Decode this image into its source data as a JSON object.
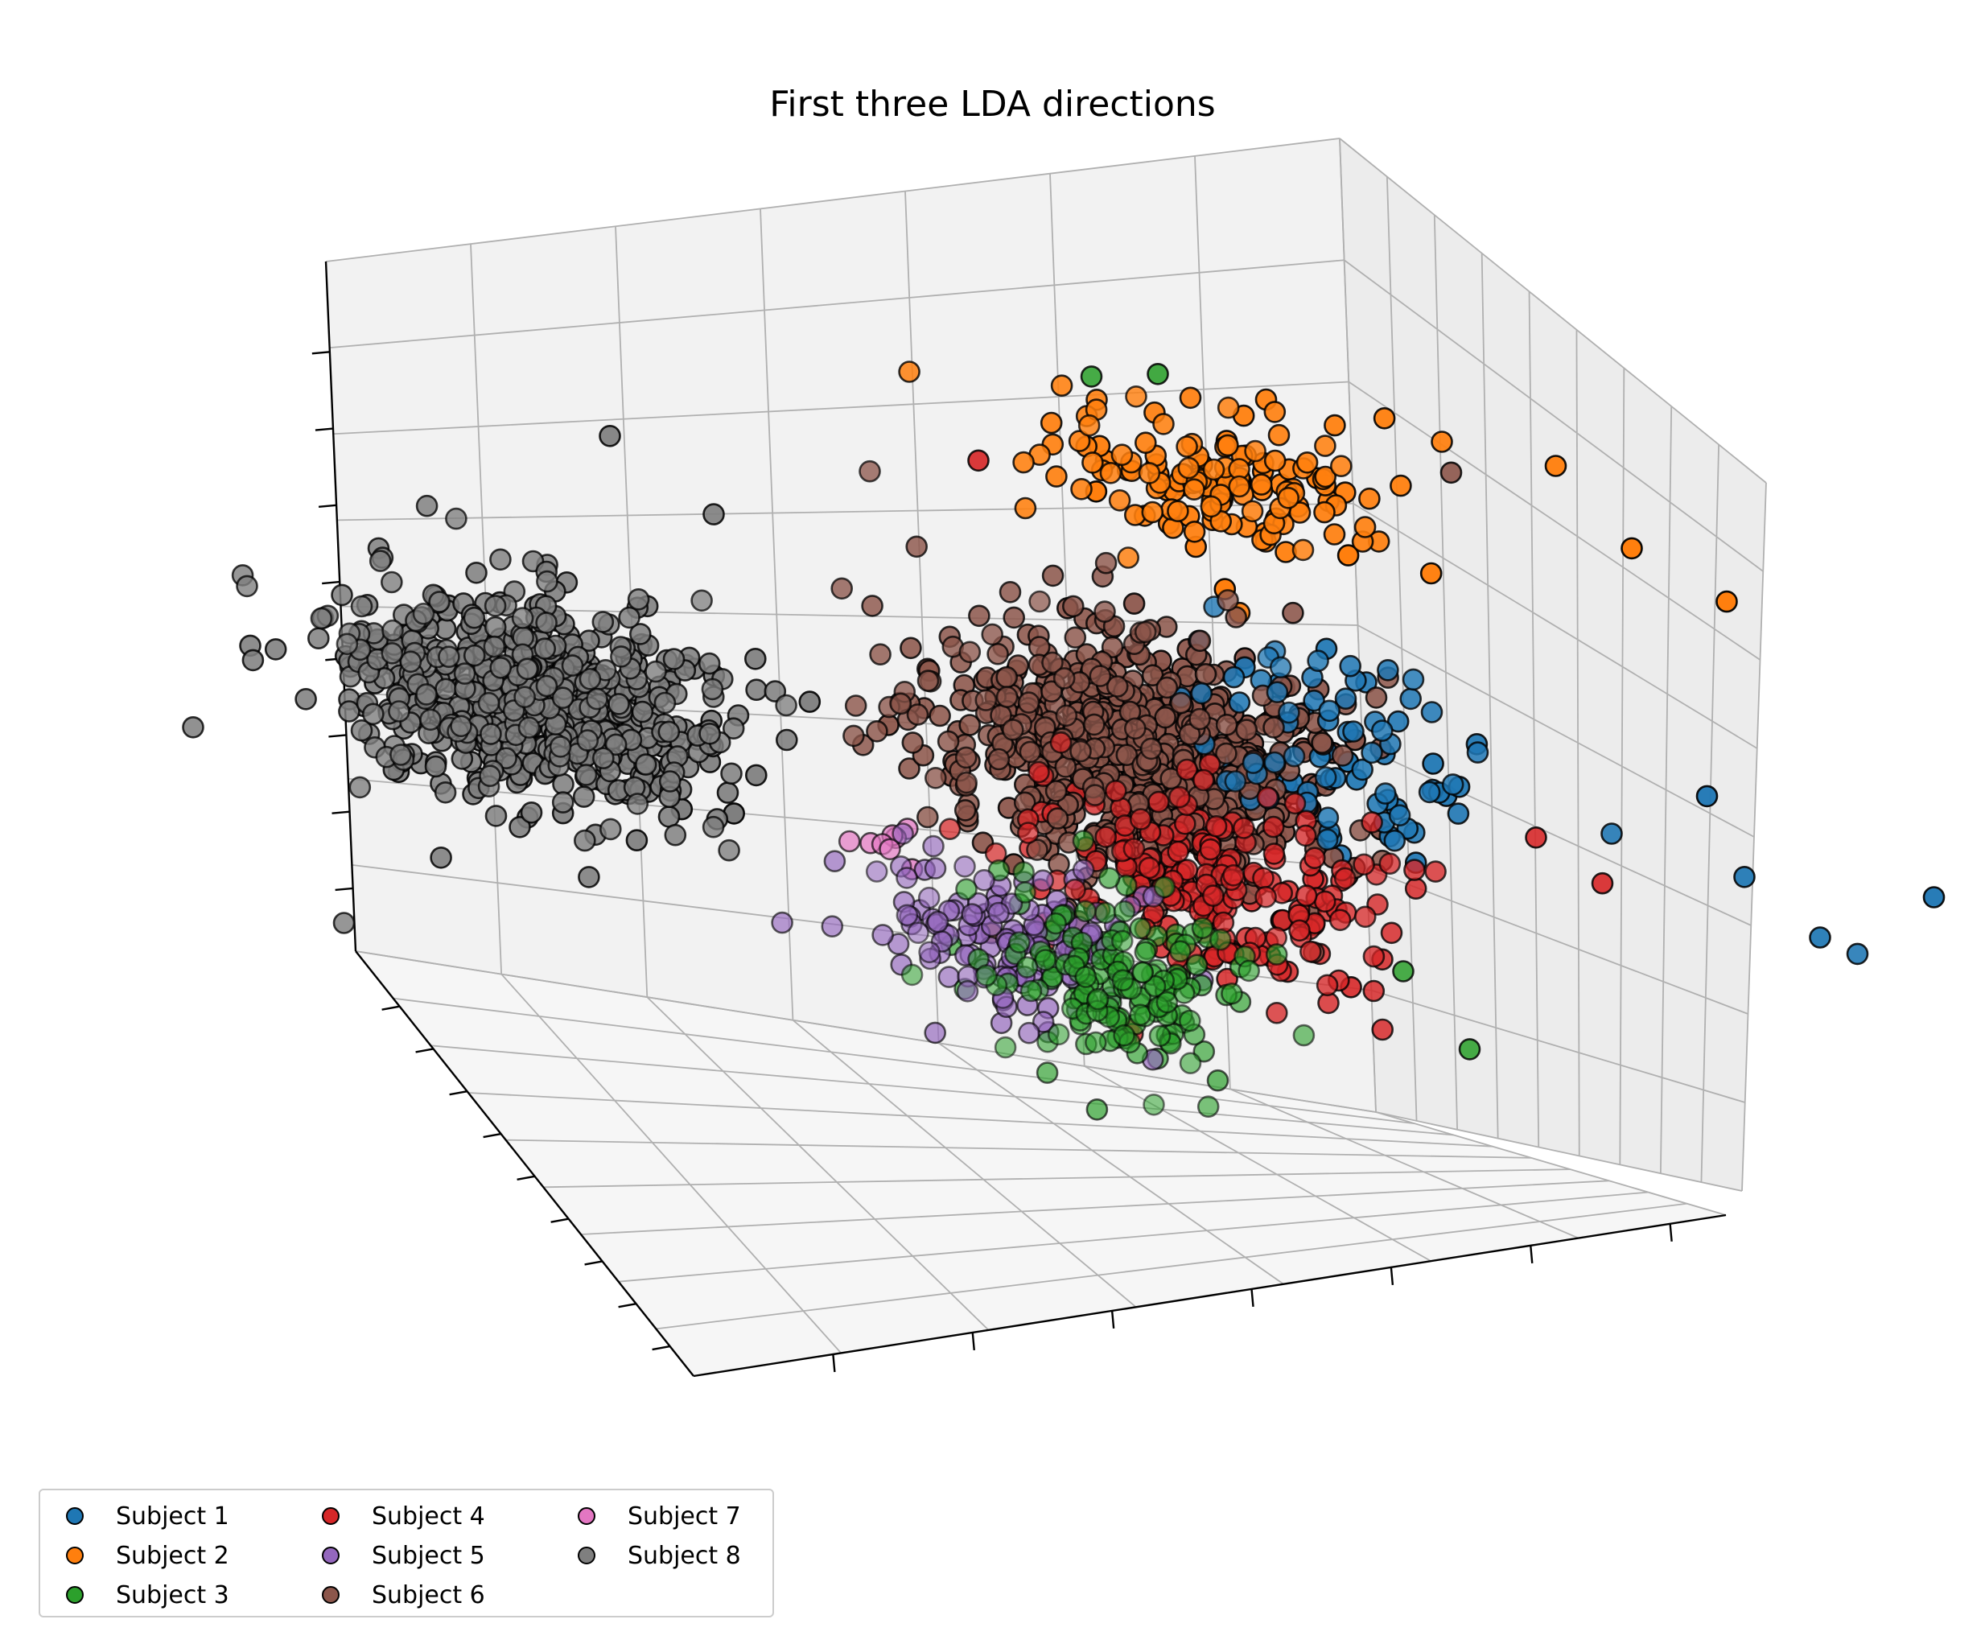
{
  "chart_data": {
    "type": "scatter",
    "projection": "3d",
    "title": "First three LDA directions",
    "xlabel": "",
    "ylabel": "",
    "zlabel": "",
    "tick_labels_shown": false,
    "grid": true,
    "legend": {
      "placement": "lower-left",
      "columns": 3
    },
    "series": [
      {
        "name": "Subject 1",
        "color": "#1f77b4",
        "center": [
          1.6,
          0.2,
          0.5
        ],
        "spread": [
          0.7,
          0.5,
          0.6
        ],
        "count": 90,
        "outliers": [
          [
            3.6,
            0.6,
            0.2
          ],
          [
            4.0,
            0.6,
            -0.1
          ],
          [
            4.3,
            0.4,
            -0.2
          ],
          [
            4.5,
            0.8,
            0.3
          ],
          [
            3.0,
            0.4,
            0.3
          ],
          [
            3.3,
            0.8,
            0.7
          ]
        ]
      },
      {
        "name": "Subject 2",
        "color": "#ff7f0e",
        "center": [
          0.9,
          0.5,
          2.1
        ],
        "spread": [
          0.8,
          0.4,
          0.4
        ],
        "count": 150,
        "outliers": [
          [
            2.5,
            0.8,
            2.6
          ],
          [
            2.8,
            1.0,
            2.2
          ],
          [
            3.2,
            1.2,
            2.0
          ],
          [
            2.0,
            0.6,
            2.6
          ]
        ]
      },
      {
        "name": "Subject 3",
        "color": "#2ca02c",
        "center": [
          1.1,
          -1.1,
          -1.4
        ],
        "spread": [
          0.6,
          0.4,
          0.5
        ],
        "count": 160,
        "outliers": [
          [
            0.3,
            0.3,
            2.6
          ],
          [
            0.6,
            0.4,
            2.7
          ],
          [
            2.0,
            0.2,
            -0.8
          ],
          [
            2.3,
            0.3,
            -1.2
          ],
          [
            1.6,
            -1.6,
            -2.2
          ]
        ]
      },
      {
        "name": "Subject 4",
        "color": "#d62728",
        "center": [
          1.2,
          -0.2,
          -0.6
        ],
        "spread": [
          0.9,
          0.5,
          0.6
        ],
        "count": 200,
        "outliers": [
          [
            2.6,
            0.4,
            0.2
          ],
          [
            2.9,
            0.5,
            0.0
          ],
          [
            -0.4,
            0.5,
            2.0
          ]
        ]
      },
      {
        "name": "Subject 5",
        "color": "#9467bd",
        "center": [
          0.5,
          -0.9,
          -1.2
        ],
        "spread": [
          0.6,
          0.4,
          0.4
        ],
        "count": 130,
        "outliers": []
      },
      {
        "name": "Subject 6",
        "color": "#8c564b",
        "center": [
          0.5,
          0.3,
          0.3
        ],
        "spread": [
          0.9,
          0.6,
          0.7
        ],
        "count": 700,
        "outliers": [
          [
            2.1,
            0.5,
            2.4
          ]
        ]
      },
      {
        "name": "Subject 7",
        "color": "#e377c2",
        "center": [
          -0.3,
          -0.6,
          -0.7
        ],
        "spread": [
          0.3,
          0.2,
          0.2
        ],
        "count": 8,
        "outliers": []
      },
      {
        "name": "Subject 8",
        "color": "#7f7f7f",
        "center": [
          -2.6,
          0.2,
          0.0
        ],
        "spread": [
          0.9,
          0.5,
          0.6
        ],
        "count": 650,
        "outliers": [
          [
            -4.2,
            0.4,
            0.1
          ],
          [
            -1.8,
            0.5,
            1.4
          ],
          [
            -2.4,
            0.6,
            1.8
          ],
          [
            -3.5,
            0.0,
            -1.6
          ],
          [
            -4.4,
            0.2,
            -0.5
          ]
        ]
      }
    ],
    "xlim": [
      -5,
      5
    ],
    "ylim": [
      -3,
      3
    ],
    "zlim": [
      -3,
      3
    ]
  }
}
